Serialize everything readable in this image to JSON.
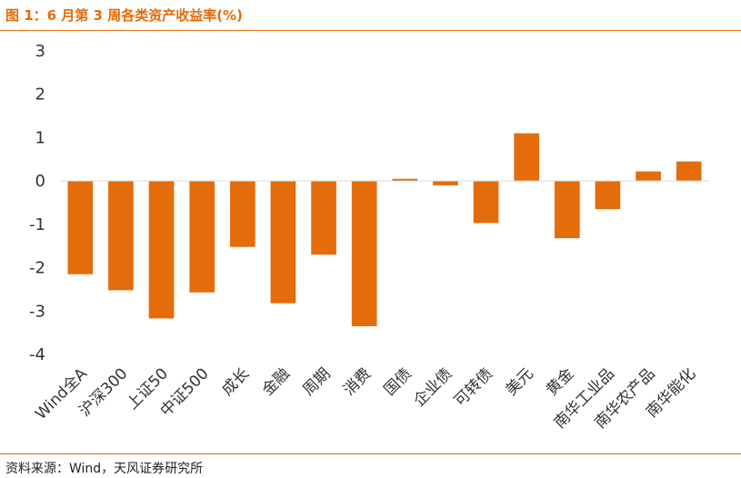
{
  "figure": {
    "title": "图 1：6 月第 3 周各类资产收益率(%)",
    "source": "资料来源：Wind，天风证券研究所"
  },
  "chart_data": {
    "type": "bar",
    "categories": [
      "Wind全A",
      "沪深300",
      "上证50",
      "中证500",
      "成长",
      "金融",
      "周期",
      "消费",
      "国债",
      "企业债",
      "可转债",
      "美元",
      "黄金",
      "南华工业品",
      "南华农产品",
      "南华能化"
    ],
    "values": [
      -2.15,
      -2.52,
      -3.17,
      -2.57,
      -1.52,
      -2.82,
      -1.7,
      -3.35,
      0.05,
      -0.1,
      -0.97,
      1.1,
      -1.32,
      -0.65,
      0.22,
      0.45
    ],
    "yticks": [
      3,
      2,
      1,
      0,
      -1,
      -2,
      -3,
      -4
    ],
    "ylim": [
      -4,
      3
    ],
    "grid": false,
    "bar_color": "#e46c0a",
    "axis_color": "#d9d9d9",
    "title": "",
    "xlabel": "",
    "ylabel": ""
  }
}
